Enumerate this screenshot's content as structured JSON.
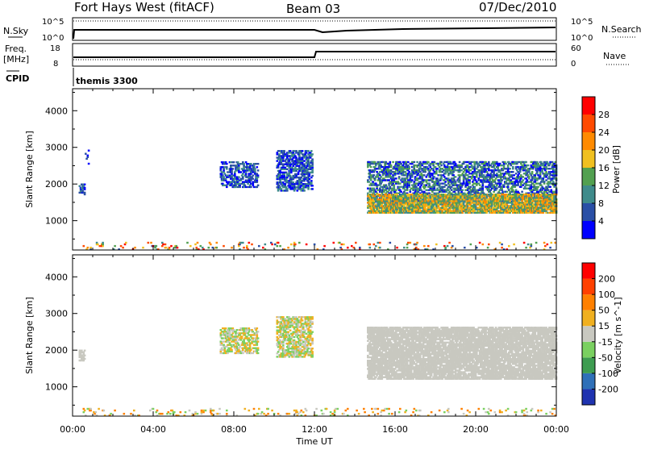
{
  "header": {
    "title": "Fort Hays West (fitACF)",
    "beam": "Beam 03",
    "date": "07/Dec/2010"
  },
  "top_panel": {
    "nsky_label": "N.Sky",
    "nsearch_label": "N.Search",
    "nsky_ticks": [
      "10^5",
      "10^0"
    ],
    "right_ticks": [
      "10^5",
      "10^0"
    ]
  },
  "freq_panel": {
    "freq_label_1": "Freq.",
    "freq_label_2": "[MHz]",
    "freq_ticks": [
      "18",
      "8"
    ],
    "nave_label": "Nave",
    "nave_ticks": [
      "60",
      "0"
    ],
    "freq_step": {
      "before_time": "12:00",
      "low": 10.5,
      "high": 15.5
    }
  },
  "cpid": {
    "label": "CPID",
    "value": "themis 3300"
  },
  "chart_data": [
    {
      "type": "heatmap",
      "name": "power",
      "ylabel": "Slant Range [km]",
      "xlabel": "",
      "y_ticks": [
        "1000",
        "2000",
        "3000",
        "4000"
      ],
      "ylim": [
        200,
        4600
      ],
      "x_ticks": [
        "00:00",
        "04:00",
        "08:00",
        "12:00",
        "16:00",
        "20:00",
        "00:00"
      ],
      "colorbar": {
        "label": "Power [dB]",
        "ticks": [
          "4",
          "8",
          "12",
          "16",
          "20",
          "24",
          "28"
        ],
        "colors": [
          "#0000ff",
          "#2a4fa6",
          "#3f8b8b",
          "#52a050",
          "#f0c020",
          "#ff8a00",
          "#ff4a00",
          "#ff0000"
        ]
      },
      "blobs": [
        {
          "t": [
            0.3,
            0.6
          ],
          "r": [
            1700,
            2000
          ],
          "density": 0.6,
          "level": [
            0,
            2
          ]
        },
        {
          "t": [
            0.6,
            0.8
          ],
          "r": [
            2400,
            3000
          ],
          "density": 0.1,
          "level": [
            0,
            1
          ]
        },
        {
          "t": [
            7.3,
            9.2
          ],
          "r": [
            1900,
            2600
          ],
          "density": 0.45,
          "level": [
            0,
            2
          ]
        },
        {
          "t": [
            10.1,
            11.9
          ],
          "r": [
            1800,
            2900
          ],
          "density": 0.55,
          "level": [
            0,
            2
          ]
        },
        {
          "t": [
            14.6,
            24.0
          ],
          "r": [
            1500,
            2600
          ],
          "density": 0.45,
          "level": [
            0,
            3
          ]
        },
        {
          "t": [
            14.6,
            24.0
          ],
          "r": [
            1200,
            1700
          ],
          "density": 0.8,
          "level": [
            2,
            5
          ]
        },
        {
          "t": [
            0.5,
            24.0
          ],
          "r": [
            200,
            400
          ],
          "density": 0.08,
          "level": [
            1,
            7
          ]
        }
      ]
    },
    {
      "type": "heatmap",
      "name": "velocity",
      "ylabel": "Slant Range [km]",
      "xlabel": "Time UT",
      "y_ticks": [
        "1000",
        "2000",
        "3000",
        "4000"
      ],
      "ylim": [
        200,
        4600
      ],
      "x_ticks": [
        "00:00",
        "04:00",
        "08:00",
        "12:00",
        "16:00",
        "20:00",
        "00:00"
      ],
      "colorbar": {
        "label": "Velocity [m s^-1]",
        "ticks": [
          "200",
          "100",
          "50",
          "15",
          "-15",
          "-50",
          "-100",
          "-200"
        ],
        "colors": [
          "#1f33b0",
          "#2f70b8",
          "#3d9c50",
          "#7ad060",
          "#c8c8c0",
          "#f0b020",
          "#ff8000",
          "#ff4000",
          "#ff0000"
        ]
      },
      "blobs": [
        {
          "t": [
            0.3,
            0.6
          ],
          "r": [
            1700,
            2000
          ],
          "density": 0.6,
          "level": [
            4,
            4
          ]
        },
        {
          "t": [
            7.3,
            9.2
          ],
          "r": [
            1900,
            2600
          ],
          "density": 0.45,
          "level": [
            3,
            5
          ]
        },
        {
          "t": [
            10.1,
            11.9
          ],
          "r": [
            1800,
            2900
          ],
          "density": 0.55,
          "level": [
            3,
            5
          ]
        },
        {
          "t": [
            14.6,
            24.0
          ],
          "r": [
            1200,
            2600
          ],
          "density": 0.75,
          "level": [
            4,
            4
          ]
        },
        {
          "t": [
            0.5,
            24.0
          ],
          "r": [
            200,
            400
          ],
          "density": 0.08,
          "level": [
            3,
            6
          ]
        }
      ]
    }
  ],
  "colors": {
    "line": "#000000",
    "background": "#ffffff"
  }
}
